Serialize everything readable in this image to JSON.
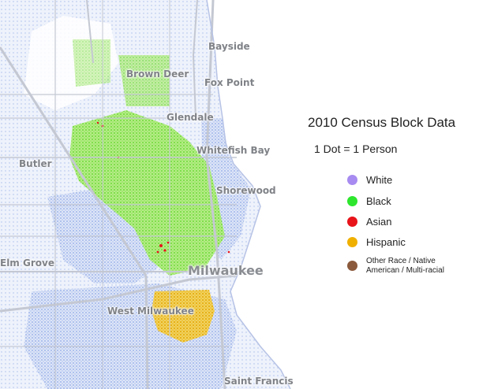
{
  "legend": {
    "title": "2010 Census Block Data",
    "subtitle": "1 Dot = 1 Person",
    "items": [
      {
        "label": "White",
        "color": "#a78bf0"
      },
      {
        "label": "Black",
        "color": "#2ee62e"
      },
      {
        "label": "Asian",
        "color": "#e8141a"
      },
      {
        "label": "Hispanic",
        "color": "#f0b000"
      },
      {
        "label_line1": "Other Race / Native",
        "label_line2": "American / Multi-racial",
        "color": "#8b5a3c"
      }
    ]
  },
  "places": {
    "bayside": "Bayside",
    "brown_deer": "Brown Deer",
    "fox_point": "Fox Point",
    "glendale": "Glendale",
    "whitefish_bay": "Whitefish Bay",
    "butler": "Butler",
    "shorewood": "Shorewood",
    "elm_grove": "Elm Grove",
    "milwaukee": "Milwaukee",
    "west_milwaukee": "West Milwaukee",
    "saint_francis": "Saint Francis"
  },
  "colors": {
    "white_dots": "#9eb3e8",
    "black_dots": "#8fe05a",
    "asian_dots": "#e8141a",
    "hispanic_dots": "#e6b000",
    "water": "#ffffff",
    "roads": "#c9ccd4"
  }
}
